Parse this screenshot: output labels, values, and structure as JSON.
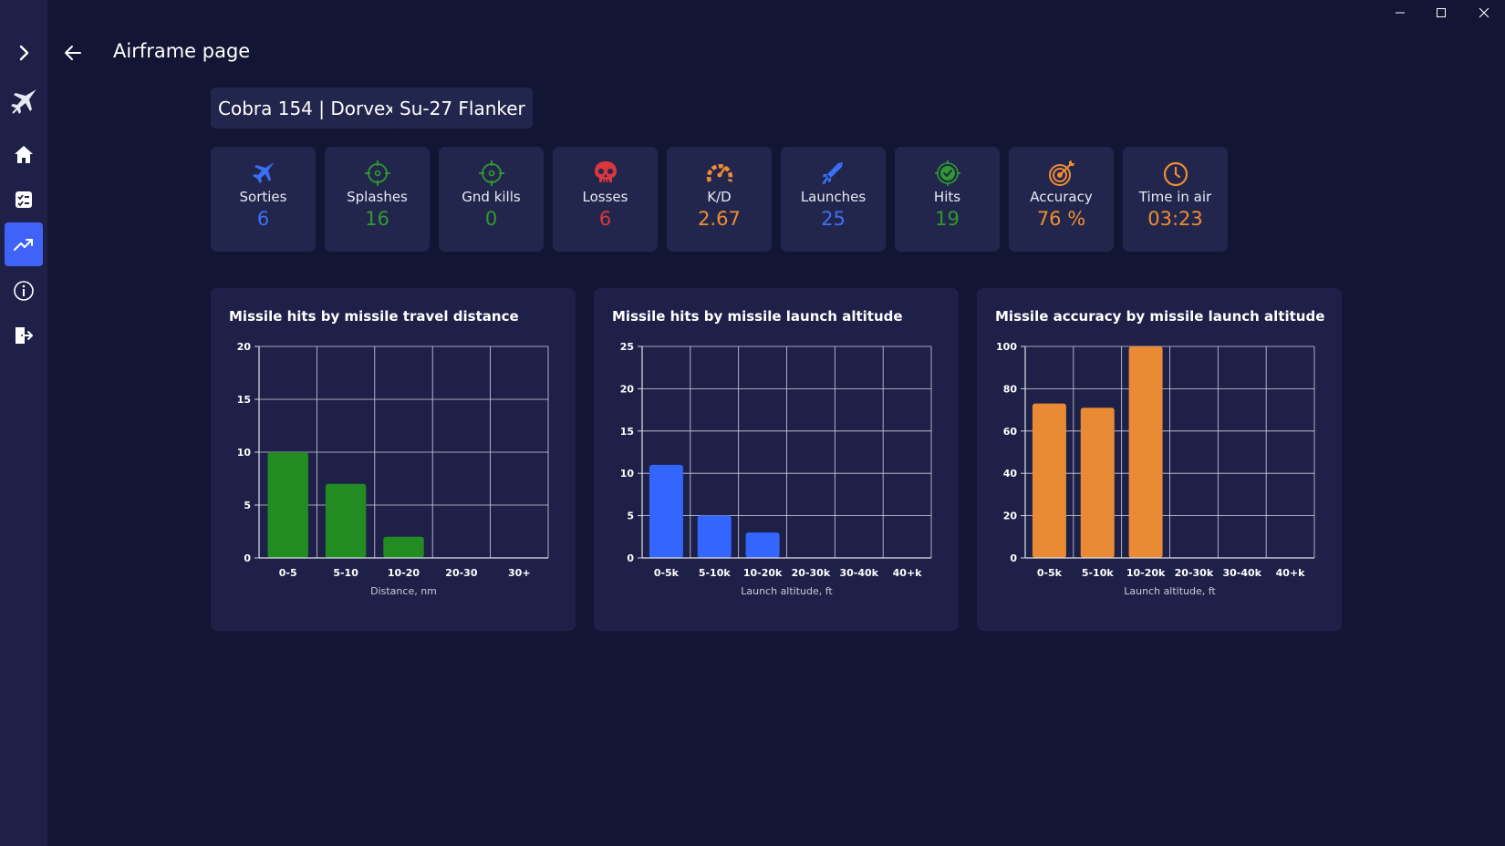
{
  "header": {
    "title": "Airframe page"
  },
  "tags": [
    {
      "label": "Cobra 154 | Dorvex"
    },
    {
      "label": "Su-27 Flanker"
    }
  ],
  "sidebar": {
    "items": [
      {
        "name": "expand",
        "icon": "chevron-right-icon"
      },
      {
        "name": "aircraft",
        "icon": "jet-icon"
      },
      {
        "name": "home",
        "icon": "home-icon"
      },
      {
        "name": "checklist",
        "icon": "checklist-icon"
      },
      {
        "name": "stats",
        "icon": "trending-up-icon",
        "active": true
      },
      {
        "name": "info",
        "icon": "info-icon"
      },
      {
        "name": "exit",
        "icon": "logout-icon"
      }
    ]
  },
  "stats": [
    {
      "label": "Sorties",
      "value": "6",
      "color": "#3a6ff7",
      "icon": "jet-icon"
    },
    {
      "label": "Splashes",
      "value": "16",
      "color": "#2f9a2f",
      "icon": "crosshair-icon"
    },
    {
      "label": "Gnd kills",
      "value": "0",
      "color": "#2f9a2f",
      "icon": "crosshair-icon"
    },
    {
      "label": "Losses",
      "value": "6",
      "color": "#d8383b",
      "icon": "skull-icon"
    },
    {
      "label": "K/D",
      "value": "2.67",
      "color": "#ef8d33",
      "icon": "gauge-icon"
    },
    {
      "label": "Launches",
      "value": "25",
      "color": "#3a6ff7",
      "icon": "missile-icon"
    },
    {
      "label": "Hits",
      "value": "19",
      "color": "#2f9a2f",
      "icon": "target-check-icon"
    },
    {
      "label": "Accuracy",
      "value": "76 %",
      "color": "#ef8d33",
      "icon": "bullseye-icon"
    },
    {
      "label": "Time in air",
      "value": "03:23",
      "color": "#ef8d33",
      "icon": "clock-icon"
    }
  ],
  "colors": {
    "green": "#228b22",
    "blue": "#3366ff",
    "orange": "#e98a35"
  },
  "chart_data": [
    {
      "type": "bar",
      "title": "Missile hits by missile travel distance",
      "categories": [
        "0-5",
        "5-10",
        "10-20",
        "20-30",
        "30+"
      ],
      "values": [
        10,
        7,
        2,
        0,
        0
      ],
      "xlabel": "Distance, nm",
      "ylabel": "",
      "ylim": [
        0,
        20
      ],
      "yticks": [
        0,
        5,
        10,
        15,
        20
      ],
      "color": "#228b22"
    },
    {
      "type": "bar",
      "title": "Missile hits by missile launch altitude",
      "categories": [
        "0-5k",
        "5-10k",
        "10-20k",
        "20-30k",
        "30-40k",
        "40+k"
      ],
      "values": [
        11,
        5,
        3,
        0,
        0,
        0
      ],
      "xlabel": "Launch altitude, ft",
      "ylabel": "",
      "ylim": [
        0,
        25
      ],
      "yticks": [
        0,
        5,
        10,
        15,
        20,
        25
      ],
      "color": "#3366ff"
    },
    {
      "type": "bar",
      "title": "Missile accuracy by missile launch altitude",
      "categories": [
        "0-5k",
        "5-10k",
        "10-20k",
        "20-30k",
        "30-40k",
        "40+k"
      ],
      "values": [
        73,
        71,
        100,
        0,
        0,
        0
      ],
      "xlabel": "Launch altitude, ft",
      "ylabel": "",
      "ylim": [
        0,
        100
      ],
      "yticks": [
        0,
        20,
        40,
        60,
        80,
        100
      ],
      "color": "#e98a35"
    }
  ]
}
